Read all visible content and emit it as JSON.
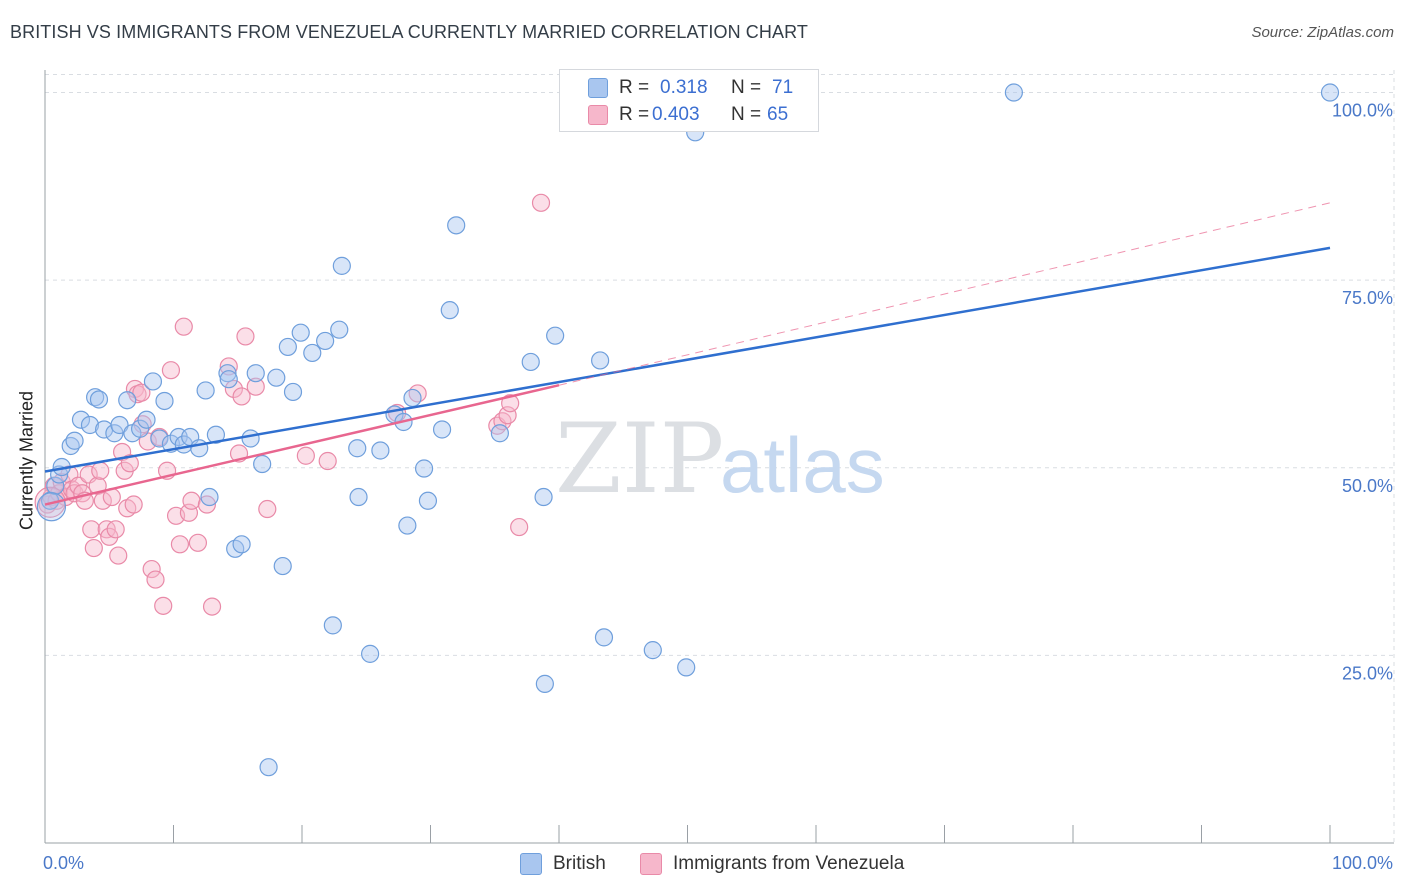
{
  "title": "BRITISH VS IMMIGRANTS FROM VENEZUELA CURRENTLY MARRIED CORRELATION CHART",
  "source": "Source: ZipAtlas.com",
  "watermark": {
    "zip": "ZIP",
    "atlas": "atlas"
  },
  "legend_top": {
    "rows": [
      {
        "r_label": "R =",
        "r_value": "0.318",
        "n_label": "N =",
        "n_value": "71",
        "color": "#a9c6ef"
      },
      {
        "r_label": "R =",
        "r_value": "0.403",
        "n_label": "N =",
        "n_value": "65",
        "color": "#f6b7cb"
      }
    ]
  },
  "legend_bottom": [
    {
      "label": "British",
      "color": "#a9c6ef"
    },
    {
      "label": "Immigrants from Venezuela",
      "color": "#f6b7cb"
    }
  ],
  "colors": {
    "british_fill": "#a9c6ef",
    "british_stroke": "#6f9fdc",
    "british_line": "#2f6fcf",
    "venezuela_fill": "#f6b7cb",
    "venezuela_stroke": "#e98aa8",
    "venezuela_line": "#e8668f",
    "tick_label": "#4a78c8",
    "grid": "#d9dde2"
  },
  "chart_data": {
    "type": "scatter",
    "title": "BRITISH VS IMMIGRANTS FROM VENEZUELA CURRENTLY MARRIED CORRELATION CHART",
    "xlabel": "",
    "ylabel": "Currently Married",
    "xlim": [
      0,
      100
    ],
    "ylim": [
      0,
      103
    ],
    "x_tick_labels": [
      "0.0%",
      "100.0%"
    ],
    "y_tick_labels": [
      "25.0%",
      "50.0%",
      "75.0%",
      "100.0%"
    ],
    "y_ticks": [
      25,
      50,
      75,
      100
    ],
    "grid": true,
    "legend_placement": "top-center",
    "series": [
      {
        "name": "British",
        "R": 0.318,
        "N": 71,
        "trend": {
          "x0": 0,
          "y0": 49.5,
          "x1": 100,
          "y1": 79.3
        },
        "points": [
          [
            0.4,
            45.6
          ],
          [
            0.8,
            47.6
          ],
          [
            1.1,
            49.1
          ],
          [
            1.3,
            50.1
          ],
          [
            2.0,
            52.9
          ],
          [
            2.3,
            53.6
          ],
          [
            2.8,
            56.4
          ],
          [
            3.5,
            55.7
          ],
          [
            3.9,
            59.4
          ],
          [
            4.2,
            59.1
          ],
          [
            4.6,
            55.1
          ],
          [
            5.4,
            54.6
          ],
          [
            5.8,
            55.7
          ],
          [
            6.4,
            59.0
          ],
          [
            6.8,
            54.6
          ],
          [
            7.4,
            55.2
          ],
          [
            7.9,
            56.4
          ],
          [
            8.4,
            61.5
          ],
          [
            8.9,
            53.9
          ],
          [
            9.3,
            58.9
          ],
          [
            9.8,
            53.2
          ],
          [
            10.4,
            54.1
          ],
          [
            10.8,
            53.1
          ],
          [
            11.3,
            54.1
          ],
          [
            12.0,
            52.6
          ],
          [
            12.5,
            60.3
          ],
          [
            12.8,
            46.1
          ],
          [
            13.3,
            54.4
          ],
          [
            14.2,
            62.6
          ],
          [
            14.3,
            61.8
          ],
          [
            14.8,
            39.2
          ],
          [
            15.3,
            39.8
          ],
          [
            16.0,
            53.9
          ],
          [
            16.4,
            62.6
          ],
          [
            16.9,
            50.5
          ],
          [
            17.4,
            10.1
          ],
          [
            18.0,
            62.0
          ],
          [
            18.5,
            36.9
          ],
          [
            18.9,
            66.1
          ],
          [
            19.3,
            60.1
          ],
          [
            19.9,
            68.0
          ],
          [
            20.8,
            65.3
          ],
          [
            21.8,
            66.9
          ],
          [
            22.4,
            29.0
          ],
          [
            22.9,
            68.4
          ],
          [
            23.1,
            76.9
          ],
          [
            24.3,
            52.6
          ],
          [
            24.4,
            46.1
          ],
          [
            25.3,
            25.2
          ],
          [
            26.1,
            52.3
          ],
          [
            27.2,
            57.1
          ],
          [
            27.9,
            56.1
          ],
          [
            28.2,
            42.3
          ],
          [
            28.6,
            59.3
          ],
          [
            29.5,
            49.9
          ],
          [
            29.8,
            45.6
          ],
          [
            30.9,
            55.1
          ],
          [
            32.0,
            82.3
          ],
          [
            31.5,
            71.0
          ],
          [
            35.4,
            54.6
          ],
          [
            37.8,
            64.1
          ],
          [
            38.8,
            46.1
          ],
          [
            38.9,
            21.2
          ],
          [
            39.7,
            67.6
          ],
          [
            43.2,
            64.3
          ],
          [
            43.5,
            27.4
          ],
          [
            47.3,
            25.7
          ],
          [
            49.9,
            23.4
          ],
          [
            50.6,
            94.7
          ],
          [
            75.4,
            100.0
          ],
          [
            100.0,
            100.0
          ]
        ]
      },
      {
        "name": "Immigrants from Venezuela",
        "R": 0.403,
        "N": 65,
        "trend": {
          "x0": 0,
          "y0": 45.1,
          "x1": 40,
          "y1": 61.0
        },
        "trend_extension": {
          "x0": 40,
          "y0": 61.0,
          "x1": 100,
          "y1": 85.3
        },
        "points": [
          [
            0.2,
            45.1
          ],
          [
            0.5,
            46.1
          ],
          [
            0.7,
            47.6
          ],
          [
            0.9,
            45.6
          ],
          [
            1.1,
            46.6
          ],
          [
            1.3,
            48.1
          ],
          [
            1.6,
            46.1
          ],
          [
            1.9,
            49.1
          ],
          [
            2.1,
            47.1
          ],
          [
            2.3,
            46.6
          ],
          [
            2.6,
            47.6
          ],
          [
            2.9,
            46.6
          ],
          [
            3.1,
            45.6
          ],
          [
            3.4,
            49.1
          ],
          [
            3.6,
            41.8
          ],
          [
            3.8,
            39.3
          ],
          [
            4.1,
            47.6
          ],
          [
            4.3,
            49.6
          ],
          [
            4.5,
            45.6
          ],
          [
            4.8,
            41.8
          ],
          [
            5.0,
            40.8
          ],
          [
            5.2,
            46.1
          ],
          [
            5.5,
            41.8
          ],
          [
            5.7,
            38.3
          ],
          [
            6.0,
            52.1
          ],
          [
            6.2,
            49.6
          ],
          [
            6.4,
            44.6
          ],
          [
            6.6,
            50.6
          ],
          [
            6.9,
            45.1
          ],
          [
            7.0,
            60.5
          ],
          [
            7.2,
            59.8
          ],
          [
            7.5,
            60.0
          ],
          [
            7.6,
            55.8
          ],
          [
            8.0,
            53.5
          ],
          [
            8.3,
            36.5
          ],
          [
            8.6,
            35.1
          ],
          [
            8.9,
            54.1
          ],
          [
            9.2,
            31.6
          ],
          [
            9.5,
            49.6
          ],
          [
            9.8,
            63.0
          ],
          [
            10.2,
            43.6
          ],
          [
            10.5,
            39.8
          ],
          [
            10.8,
            68.8
          ],
          [
            11.2,
            44.0
          ],
          [
            11.4,
            45.6
          ],
          [
            11.9,
            40.0
          ],
          [
            12.6,
            45.1
          ],
          [
            13.0,
            31.5
          ],
          [
            14.3,
            63.5
          ],
          [
            14.7,
            60.5
          ],
          [
            15.1,
            51.9
          ],
          [
            15.3,
            59.5
          ],
          [
            15.6,
            67.5
          ],
          [
            16.4,
            60.8
          ],
          [
            17.3,
            44.5
          ],
          [
            20.3,
            51.6
          ],
          [
            22.0,
            50.9
          ],
          [
            27.4,
            57.3
          ],
          [
            29.0,
            59.9
          ],
          [
            35.2,
            55.6
          ],
          [
            35.6,
            56.2
          ],
          [
            36.0,
            57.0
          ],
          [
            36.2,
            58.6
          ],
          [
            36.9,
            42.1
          ],
          [
            38.6,
            85.3
          ]
        ]
      }
    ]
  }
}
